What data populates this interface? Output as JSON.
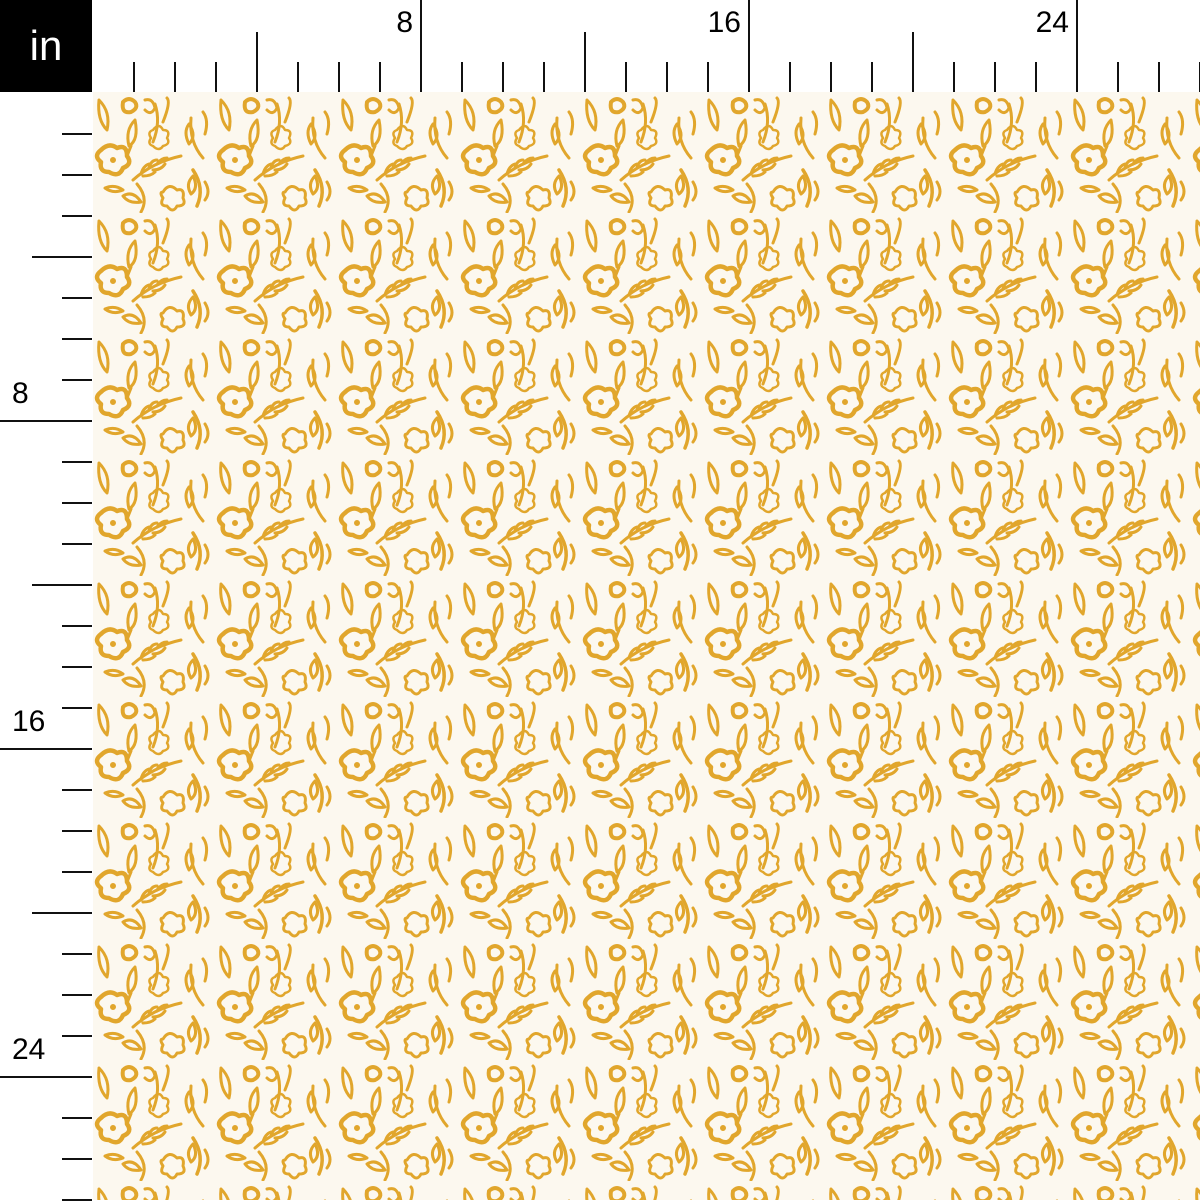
{
  "ruler": {
    "unit": "in",
    "top_labels": [
      "8",
      "16",
      "24"
    ],
    "left_labels": [
      "8",
      "16",
      "24"
    ],
    "minor_tick_interval_in": 1,
    "mid_tick_interval_in": 4,
    "labeled_tick_interval_in": 8
  },
  "fabric": {
    "pattern": "hand-drawn floral leaves and flowers",
    "background_color": "#fcf8ef",
    "motif_color": "#e1a62c"
  }
}
